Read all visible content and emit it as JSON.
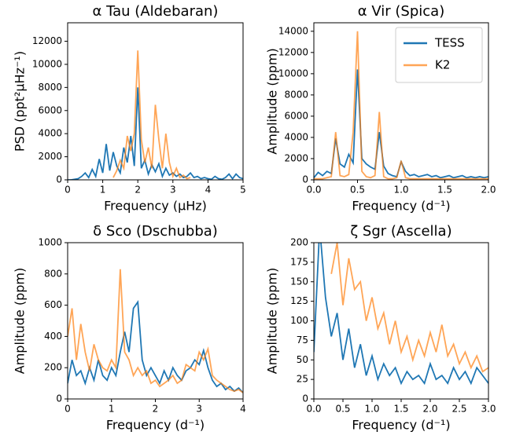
{
  "chart_data": [
    {
      "type": "line",
      "title": "α Tau (Aldebaran)",
      "x_label": "Frequency (μHz)",
      "y_label": "PSD (ppt²μHz⁻¹)",
      "xlim": [
        0,
        5
      ],
      "ylim": [
        0,
        13600
      ],
      "xticks": [
        0,
        1,
        2,
        3,
        4,
        5
      ],
      "yticks": [
        0,
        2000,
        4000,
        6000,
        8000,
        10000,
        12000
      ],
      "x": [
        0,
        0.1,
        0.2,
        0.3,
        0.4,
        0.5,
        0.6,
        0.7,
        0.8,
        0.9,
        1.0,
        1.1,
        1.2,
        1.3,
        1.4,
        1.5,
        1.6,
        1.7,
        1.8,
        1.9,
        2.0,
        2.1,
        2.2,
        2.3,
        2.4,
        2.5,
        2.6,
        2.7,
        2.8,
        2.9,
        3.0,
        3.1,
        3.2,
        3.3,
        3.4,
        3.5,
        3.6,
        3.7,
        3.8,
        3.9,
        4.0,
        4.1,
        4.2,
        4.3,
        4.4,
        4.5,
        4.6,
        4.7,
        4.8,
        4.9,
        5.0
      ],
      "series": [
        {
          "color": "#1f77b4",
          "values": [
            0,
            0,
            50,
            100,
            300,
            600,
            200,
            900,
            300,
            1800,
            600,
            3100,
            800,
            2400,
            1200,
            600,
            2800,
            1500,
            3800,
            1200,
            8000,
            1000,
            1700,
            500,
            1300,
            700,
            1400,
            300,
            1000,
            400,
            600,
            300,
            500,
            200,
            300,
            600,
            200,
            300,
            100,
            200,
            100,
            50,
            300,
            100,
            50,
            200,
            500,
            100,
            500,
            200,
            100
          ]
        },
        {
          "color": "#ff7f0e",
          "values": [
            null,
            null,
            null,
            null,
            null,
            null,
            null,
            null,
            null,
            null,
            null,
            null,
            null,
            200,
            800,
            1700,
            1000,
            3800,
            2500,
            4000,
            11200,
            3500,
            1500,
            2800,
            1000,
            6500,
            3500,
            1000,
            4000,
            1500,
            300,
            1000,
            200,
            400,
            100,
            200,
            null,
            null,
            null,
            null,
            null,
            null,
            null,
            null,
            null,
            null,
            null,
            null,
            null,
            null,
            null
          ]
        }
      ]
    },
    {
      "type": "line",
      "title": "α Vir (Spica)",
      "x_label": "Frequency (d⁻¹)",
      "y_label": "Amplitude (ppm)",
      "legend": "upper right",
      "xlim": [
        0,
        2
      ],
      "ylim": [
        0,
        14800
      ],
      "xticks": [
        {
          "value": 0,
          "label": "0.0"
        },
        0.5,
        {
          "value": 1,
          "label": "1.0"
        },
        1.5,
        {
          "value": 2,
          "label": "2.0"
        }
      ],
      "yticks": [
        0,
        2000,
        4000,
        6000,
        8000,
        10000,
        12000,
        14000
      ],
      "x": [
        0,
        0.05,
        0.1,
        0.15,
        0.2,
        0.25,
        0.3,
        0.35,
        0.4,
        0.45,
        0.5,
        0.55,
        0.6,
        0.65,
        0.7,
        0.75,
        0.8,
        0.85,
        0.9,
        0.95,
        1.0,
        1.05,
        1.1,
        1.15,
        1.2,
        1.25,
        1.3,
        1.35,
        1.4,
        1.45,
        1.5,
        1.55,
        1.6,
        1.65,
        1.7,
        1.75,
        1.8,
        1.85,
        1.9,
        1.95,
        2.0
      ],
      "series": [
        {
          "name": "TESS",
          "color": "#1f77b4",
          "values": [
            200,
            700,
            400,
            800,
            600,
            3900,
            1500,
            1200,
            2400,
            1600,
            10400,
            2000,
            1500,
            1200,
            1000,
            4500,
            1300,
            600,
            400,
            300,
            1700,
            800,
            400,
            500,
            300,
            400,
            500,
            300,
            400,
            200,
            300,
            400,
            200,
            300,
            400,
            200,
            300,
            200,
            300,
            200,
            300
          ]
        },
        {
          "name": "K2",
          "color": "#ff7f0e",
          "values": [
            100,
            100,
            100,
            200,
            300,
            4500,
            400,
            300,
            500,
            4500,
            14000,
            800,
            300,
            200,
            400,
            6400,
            300,
            100,
            100,
            200,
            1800,
            200,
            100,
            100,
            100,
            100,
            100,
            100,
            100,
            100,
            100,
            100,
            100,
            100,
            100,
            100,
            100,
            100,
            100,
            100,
            100
          ]
        }
      ]
    },
    {
      "type": "line",
      "title": "δ Sco (Dschubba)",
      "x_label": "Frequency (d⁻¹)",
      "y_label": "Amplitude (ppm)",
      "xlim": [
        0,
        4
      ],
      "ylim": [
        0,
        1000
      ],
      "xticks": [
        0,
        1,
        2,
        3,
        4
      ],
      "yticks": [
        0,
        200,
        400,
        600,
        800,
        1000
      ],
      "x": [
        0,
        0.1,
        0.2,
        0.3,
        0.4,
        0.5,
        0.6,
        0.7,
        0.8,
        0.9,
        1.0,
        1.1,
        1.2,
        1.3,
        1.4,
        1.5,
        1.6,
        1.7,
        1.8,
        1.9,
        2.0,
        2.1,
        2.2,
        2.3,
        2.4,
        2.5,
        2.6,
        2.7,
        2.8,
        2.9,
        3.0,
        3.1,
        3.2,
        3.3,
        3.4,
        3.5,
        3.6,
        3.7,
        3.8,
        3.9,
        4.0
      ],
      "series": [
        {
          "color": "#1f77b4",
          "values": [
            100,
            250,
            150,
            180,
            100,
            200,
            120,
            250,
            150,
            120,
            200,
            150,
            300,
            430,
            300,
            580,
            620,
            250,
            150,
            200,
            150,
            100,
            180,
            120,
            200,
            150,
            120,
            180,
            200,
            250,
            220,
            310,
            200,
            120,
            80,
            100,
            60,
            80,
            50,
            70,
            40
          ]
        },
        {
          "color": "#ff7f0e",
          "values": [
            400,
            580,
            250,
            480,
            300,
            180,
            350,
            250,
            200,
            180,
            250,
            200,
            830,
            300,
            250,
            150,
            200,
            150,
            180,
            100,
            120,
            80,
            100,
            120,
            150,
            100,
            120,
            220,
            200,
            180,
            300,
            250,
            320,
            150,
            120,
            100,
            80,
            60,
            50,
            60,
            40
          ]
        }
      ]
    },
    {
      "type": "line",
      "title": "ζ Sgr (Ascella)",
      "x_label": "Frequency (d⁻¹)",
      "y_label": "Amplitude (ppm)",
      "xlim": [
        0,
        3
      ],
      "ylim": [
        0,
        200
      ],
      "xticks": [
        {
          "value": 0,
          "label": "0.0"
        },
        0.5,
        {
          "value": 1,
          "label": "1.0"
        },
        1.5,
        {
          "value": 2,
          "label": "2.0"
        },
        2.5,
        {
          "value": 3,
          "label": "3.0"
        }
      ],
      "yticks": [
        0,
        25,
        50,
        75,
        100,
        125,
        150,
        175,
        200
      ],
      "x": [
        0,
        0.1,
        0.2,
        0.3,
        0.4,
        0.5,
        0.6,
        0.7,
        0.8,
        0.9,
        1.0,
        1.1,
        1.2,
        1.3,
        1.4,
        1.5,
        1.6,
        1.7,
        1.8,
        1.9,
        2.0,
        2.1,
        2.2,
        2.3,
        2.4,
        2.5,
        2.6,
        2.7,
        2.8,
        2.9,
        3.0
      ],
      "series": [
        {
          "color": "#1f77b4",
          "values": [
            60,
            220,
            130,
            80,
            110,
            50,
            90,
            40,
            70,
            30,
            55,
            25,
            45,
            30,
            40,
            20,
            35,
            25,
            30,
            20,
            45,
            25,
            30,
            20,
            40,
            25,
            35,
            20,
            40,
            30,
            20
          ]
        },
        {
          "color": "#ff7f0e",
          "values": [
            null,
            null,
            null,
            160,
            200,
            120,
            180,
            140,
            150,
            100,
            130,
            90,
            110,
            70,
            100,
            60,
            80,
            50,
            75,
            55,
            85,
            60,
            95,
            55,
            70,
            45,
            60,
            40,
            55,
            35,
            40
          ]
        }
      ]
    }
  ]
}
